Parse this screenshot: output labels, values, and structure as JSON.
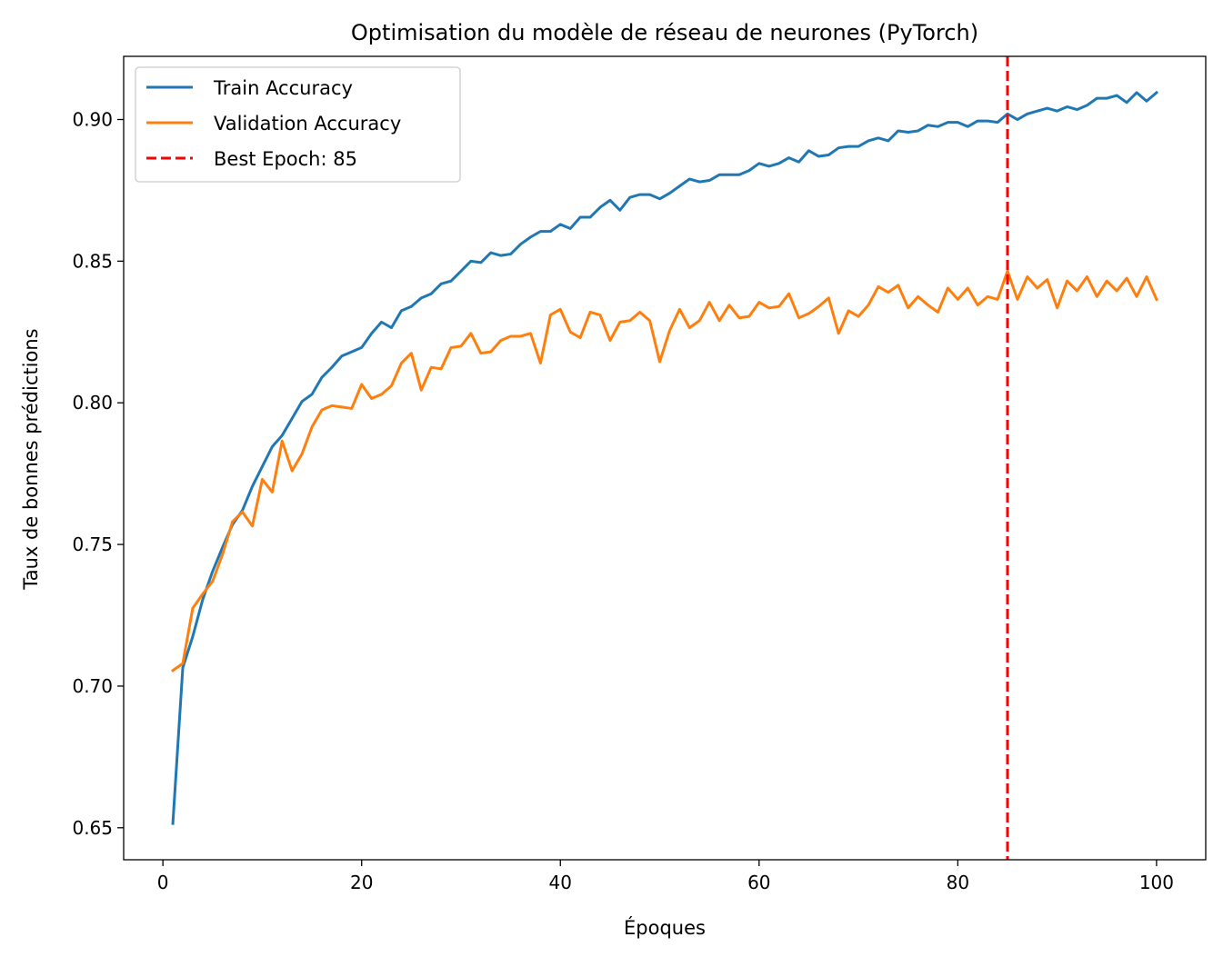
{
  "chart_data": {
    "type": "line",
    "title": "Optimisation du modèle de réseau de neurones (PyTorch)",
    "xlabel": "Époques",
    "ylabel": "Taux de bonnes prédictions",
    "xlim": [
      -3.95,
      104.95
    ],
    "ylim": [
      0.6387,
      0.9223
    ],
    "xticks": [
      0,
      20,
      40,
      60,
      80,
      100
    ],
    "yticks": [
      0.65,
      0.7,
      0.75,
      0.8,
      0.85,
      0.9
    ],
    "xtick_labels": [
      "0",
      "20",
      "40",
      "60",
      "80",
      "100"
    ],
    "ytick_labels": [
      "0.65",
      "0.70",
      "0.75",
      "0.80",
      "0.85",
      "0.90"
    ],
    "grid": false,
    "legend_position": "top-left",
    "x": [
      1,
      2,
      3,
      4,
      5,
      6,
      7,
      8,
      9,
      10,
      11,
      12,
      13,
      14,
      15,
      16,
      17,
      18,
      19,
      20,
      21,
      22,
      23,
      24,
      25,
      26,
      27,
      28,
      29,
      30,
      31,
      32,
      33,
      34,
      35,
      36,
      37,
      38,
      39,
      40,
      41,
      42,
      43,
      44,
      45,
      46,
      47,
      48,
      49,
      50,
      51,
      52,
      53,
      54,
      55,
      56,
      57,
      58,
      59,
      60,
      61,
      62,
      63,
      64,
      65,
      66,
      67,
      68,
      69,
      70,
      71,
      72,
      73,
      74,
      75,
      76,
      77,
      78,
      79,
      80,
      81,
      82,
      83,
      84,
      85,
      86,
      87,
      88,
      89,
      90,
      91,
      92,
      93,
      94,
      95,
      96,
      97,
      98,
      99,
      100
    ],
    "series": [
      {
        "name": "Train Accuracy",
        "color": "#1f77b4",
        "style": "solid",
        "values": [
          0.6515,
          0.7065,
          0.7175,
          0.7305,
          0.7405,
          0.749,
          0.757,
          0.762,
          0.7705,
          0.7775,
          0.7845,
          0.7885,
          0.7945,
          0.8005,
          0.803,
          0.809,
          0.8125,
          0.8165,
          0.818,
          0.8195,
          0.8245,
          0.8285,
          0.8265,
          0.8325,
          0.834,
          0.837,
          0.8385,
          0.842,
          0.843,
          0.8465,
          0.85,
          0.8495,
          0.853,
          0.852,
          0.8525,
          0.856,
          0.8585,
          0.8605,
          0.8605,
          0.863,
          0.8615,
          0.8655,
          0.8655,
          0.869,
          0.8715,
          0.868,
          0.8725,
          0.8735,
          0.8735,
          0.872,
          0.874,
          0.8765,
          0.879,
          0.878,
          0.8785,
          0.8805,
          0.8805,
          0.8805,
          0.882,
          0.8845,
          0.8835,
          0.8845,
          0.8865,
          0.885,
          0.889,
          0.887,
          0.8875,
          0.89,
          0.8905,
          0.8905,
          0.8925,
          0.8935,
          0.8925,
          0.896,
          0.8955,
          0.896,
          0.898,
          0.8975,
          0.899,
          0.899,
          0.8975,
          0.8995,
          0.8995,
          0.899,
          0.902,
          0.9,
          0.902,
          0.903,
          0.904,
          0.903,
          0.9045,
          0.9035,
          0.905,
          0.9075,
          0.9075,
          0.9085,
          0.906,
          0.9095,
          0.9065,
          0.9095
        ]
      },
      {
        "name": "Validation Accuracy",
        "color": "#ff7f0e",
        "style": "solid",
        "values": [
          0.7055,
          0.708,
          0.7275,
          0.7325,
          0.737,
          0.7465,
          0.758,
          0.7615,
          0.7565,
          0.773,
          0.7685,
          0.7865,
          0.776,
          0.782,
          0.7915,
          0.7975,
          0.799,
          0.7985,
          0.798,
          0.8065,
          0.8015,
          0.803,
          0.806,
          0.814,
          0.8175,
          0.8045,
          0.8125,
          0.812,
          0.8195,
          0.82,
          0.8245,
          0.8175,
          0.818,
          0.822,
          0.8235,
          0.8235,
          0.8245,
          0.814,
          0.831,
          0.833,
          0.825,
          0.823,
          0.832,
          0.831,
          0.822,
          0.8285,
          0.829,
          0.832,
          0.829,
          0.8145,
          0.8255,
          0.833,
          0.8265,
          0.829,
          0.8355,
          0.829,
          0.8345,
          0.83,
          0.8305,
          0.8355,
          0.8335,
          0.834,
          0.8385,
          0.83,
          0.8315,
          0.834,
          0.837,
          0.8245,
          0.8325,
          0.8305,
          0.8345,
          0.841,
          0.839,
          0.8415,
          0.8335,
          0.8375,
          0.8345,
          0.832,
          0.8405,
          0.8365,
          0.8405,
          0.8345,
          0.8375,
          0.8365,
          0.8465,
          0.8365,
          0.8445,
          0.8405,
          0.8435,
          0.8335,
          0.843,
          0.8395,
          0.8445,
          0.8375,
          0.843,
          0.8395,
          0.844,
          0.8375,
          0.8445,
          0.8365
        ]
      }
    ],
    "annotations": [
      {
        "type": "vline",
        "x": 85,
        "name": "Best Epoch: 85",
        "color": "#ff0000",
        "style": "dashed"
      }
    ],
    "legend": [
      "Train Accuracy",
      "Validation Accuracy",
      "Best Epoch: 85"
    ]
  }
}
